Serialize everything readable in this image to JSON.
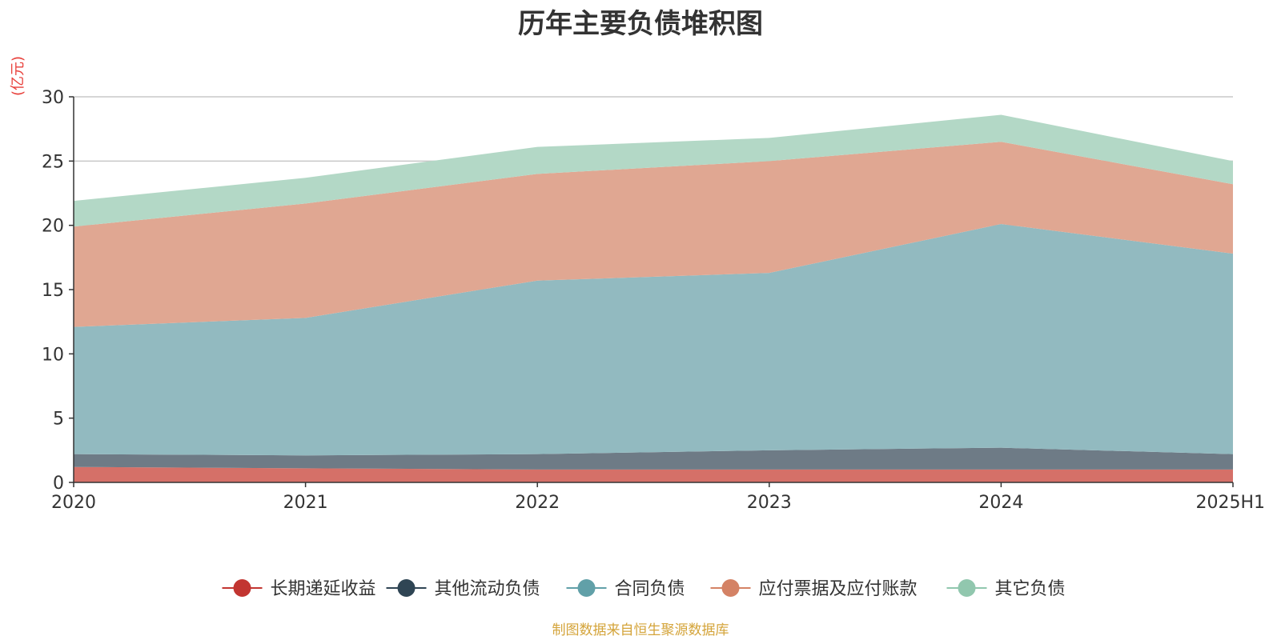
{
  "chart_data": {
    "type": "area",
    "stacked": true,
    "title": "历年主要负债堆积图",
    "unit_label": "(亿元)",
    "source": "制图数据来自恒生聚源数据库",
    "x": [
      "2020",
      "2021",
      "2022",
      "2023",
      "2024",
      "2025H1"
    ],
    "ylim": [
      0,
      30
    ],
    "yticks": [
      0,
      5,
      10,
      15,
      20,
      25,
      30
    ],
    "grid": true,
    "legend_position": "bottom",
    "series": [
      {
        "name": "长期递延收益",
        "color": "#c23531",
        "fill": "#d57068",
        "values": [
          1.2,
          1.1,
          1.0,
          1.0,
          1.0,
          1.0
        ]
      },
      {
        "name": "其他流动负债",
        "color": "#2f4554",
        "fill": "#6e7b86",
        "values": [
          1.0,
          1.0,
          1.2,
          1.5,
          1.7,
          1.2
        ]
      },
      {
        "name": "合同负债",
        "color": "#61a0a8",
        "fill": "#92bac0",
        "values": [
          9.9,
          10.7,
          13.5,
          13.8,
          17.4,
          15.6
        ]
      },
      {
        "name": "应付票据及应付账款",
        "color": "#d48265",
        "fill": "#e0a792",
        "values": [
          7.8,
          8.9,
          8.3,
          8.7,
          6.4,
          5.4
        ]
      },
      {
        "name": "其它负债",
        "color": "#91c7ae",
        "fill": "#b3d8c6",
        "values": [
          2.0,
          2.0,
          2.1,
          1.8,
          2.1,
          1.8
        ]
      }
    ]
  }
}
